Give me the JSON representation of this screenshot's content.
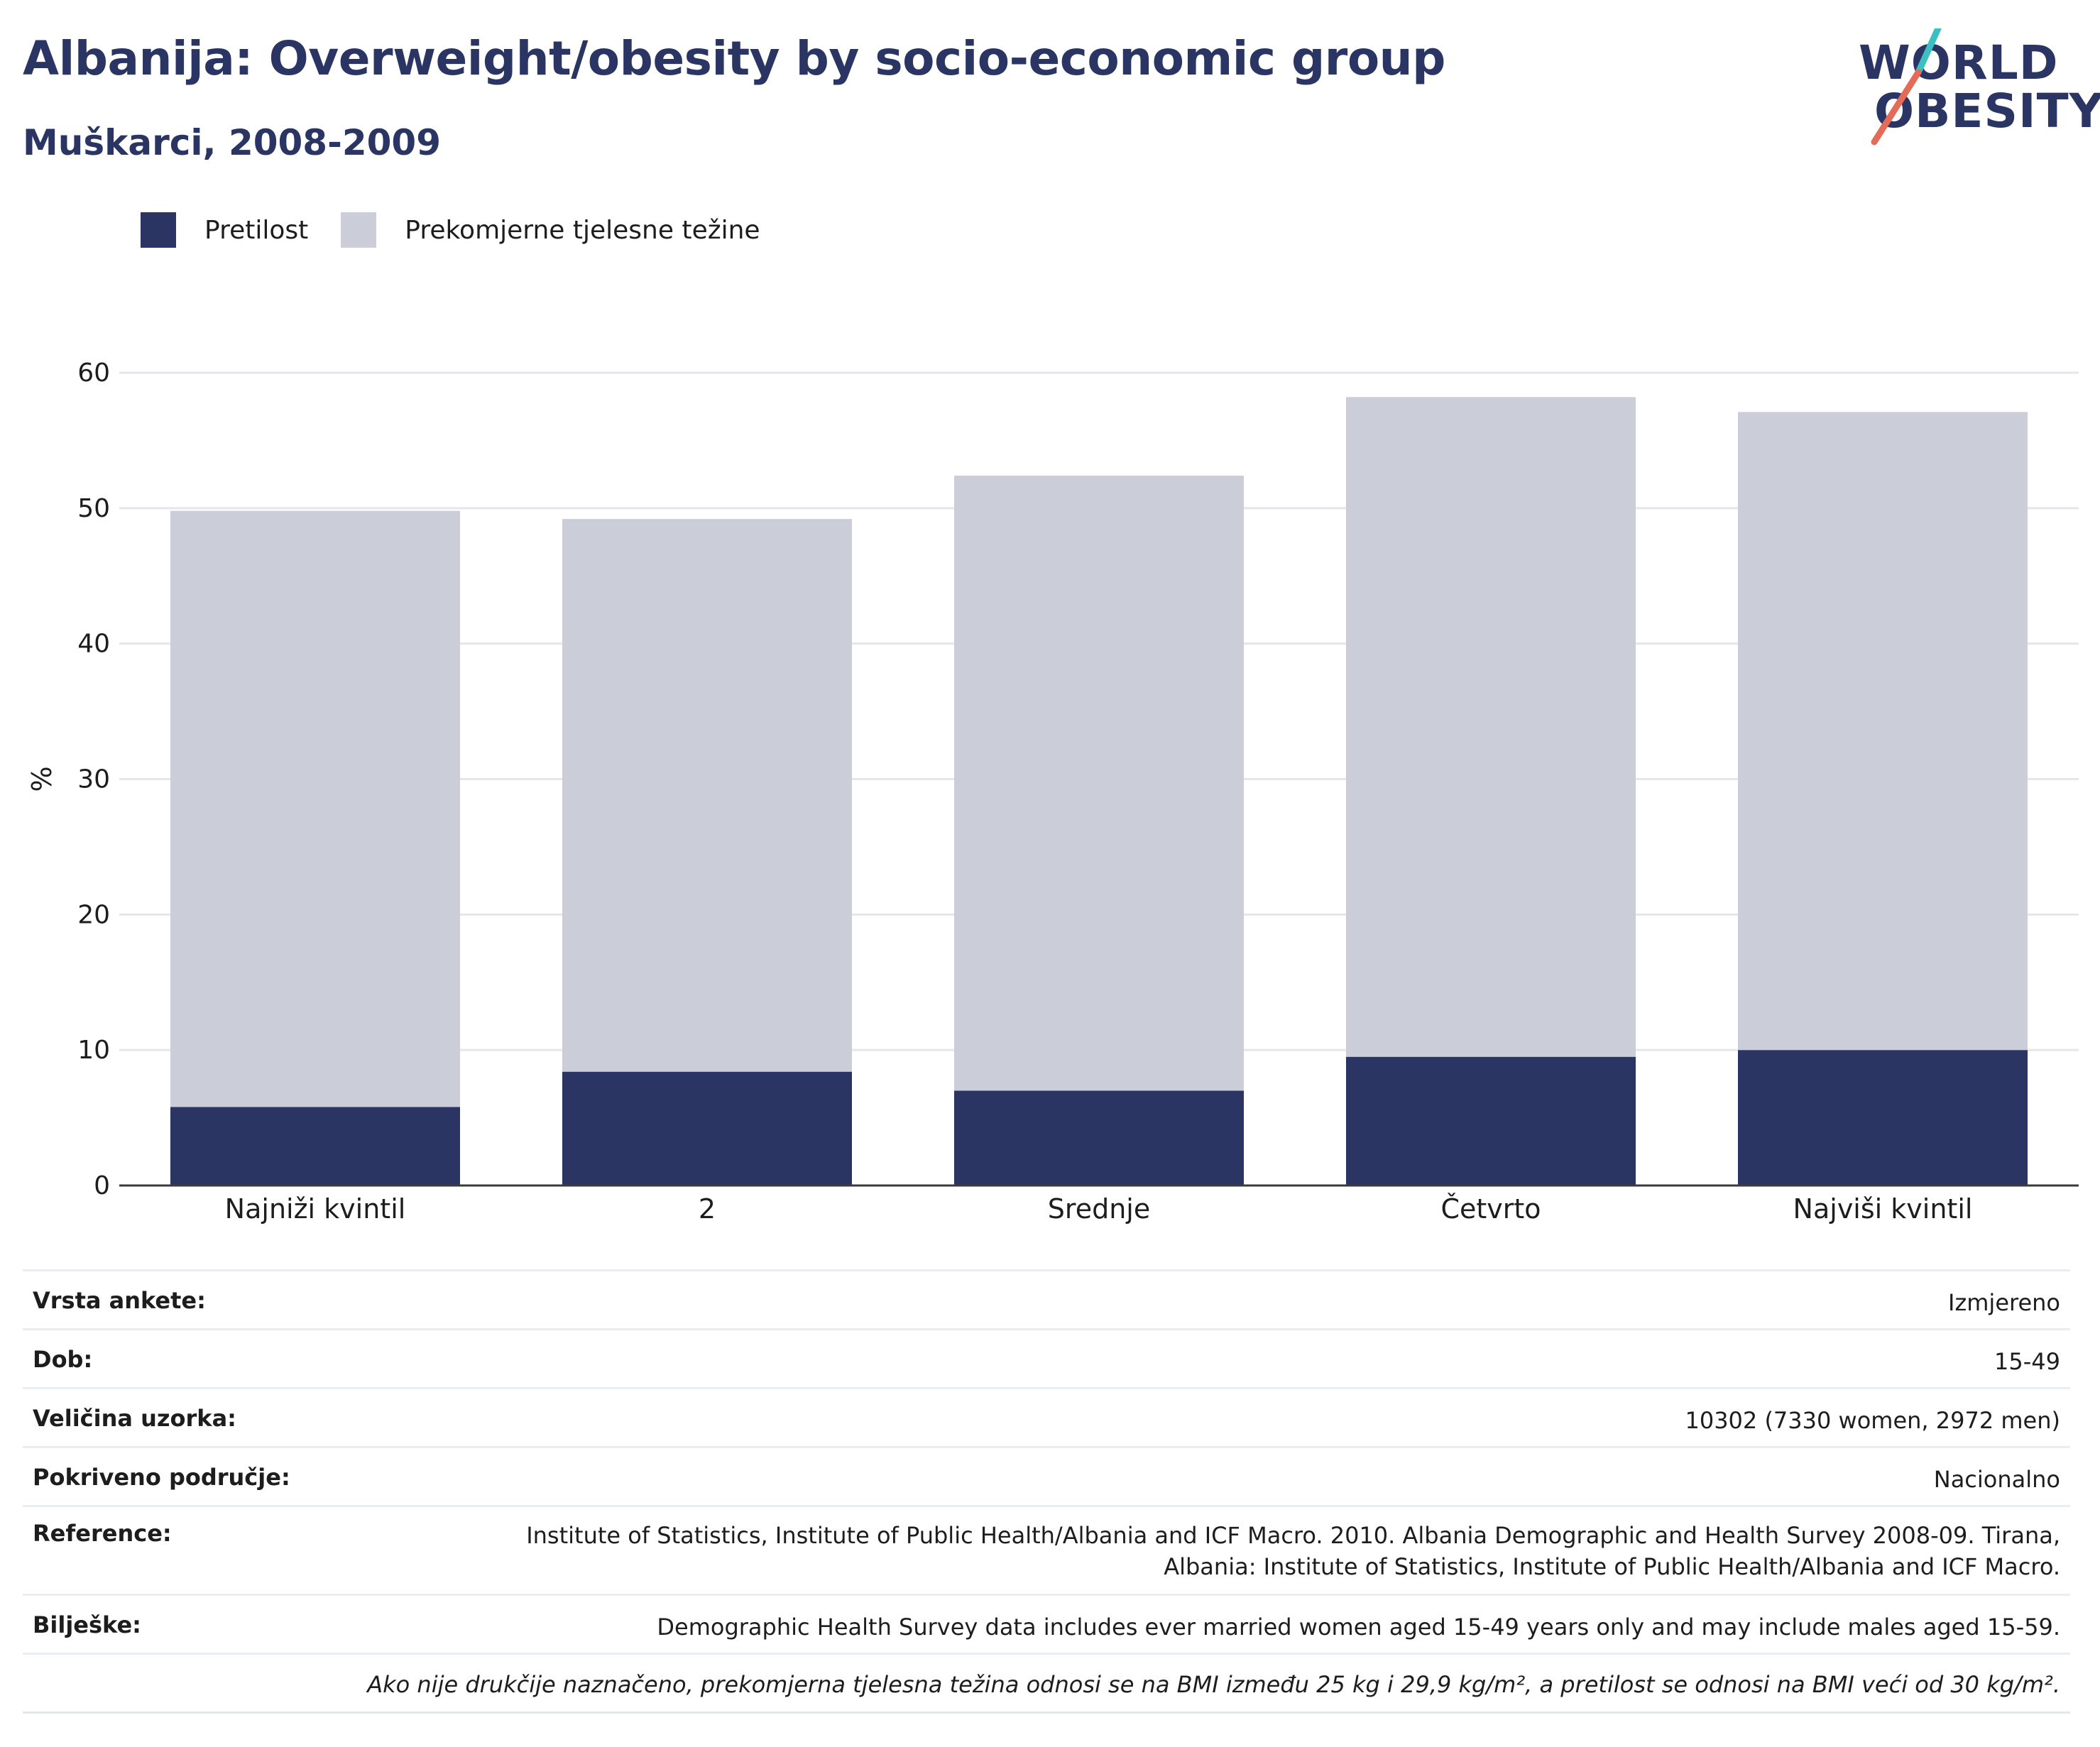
{
  "header": {
    "title": "Albanija: Overweight/obesity by socio-economic group",
    "subtitle": "Muškarci, 2008-2009"
  },
  "logo": {
    "line1": "WORLD",
    "line2": "OBESITY"
  },
  "colors": {
    "title": "#2a3563",
    "obesity": "#2a3563",
    "overweight": "#cbcdd8",
    "logo_teal": "#3bbfc2",
    "logo_coral": "#e36b58"
  },
  "chart_data": {
    "type": "bar",
    "stacked": true,
    "categories": [
      "Najniži kvintil",
      "2",
      "Srednje",
      "Četvrto",
      "Najviši kvintil"
    ],
    "series": [
      {
        "name": "Pretilost",
        "values": [
          5.8,
          8.4,
          7.0,
          9.5,
          10.0
        ]
      },
      {
        "name": "Prekomjerne tjelesne težine",
        "values": [
          44.0,
          40.8,
          45.4,
          48.7,
          47.1
        ]
      }
    ],
    "ylabel": "%",
    "ylim": [
      0,
      60
    ],
    "yticks": [
      0,
      10,
      20,
      30,
      40,
      50,
      60
    ],
    "grid": true,
    "legend_position": "top-left"
  },
  "details": [
    {
      "key": "Vrsta ankete:",
      "value": "Izmjereno"
    },
    {
      "key": "Dob:",
      "value": "15-49"
    },
    {
      "key": "Veličina uzorka:",
      "value": "10302 (7330 women, 2972 men)"
    },
    {
      "key": "Pokriveno područje:",
      "value": "Nacionalno"
    },
    {
      "key": "Reference:",
      "value": "Institute of Statistics, Institute of Public Health/Albania and ICF Macro. 2010. Albania Demographic and Health Survey 2008-09. Tirana,",
      "value2": "Albania: Institute of Statistics, Institute of Public Health/Albania and ICF Macro."
    },
    {
      "key": "Bilješke:",
      "value": "Demographic Health Survey data includes ever married women aged 15-49 years only and may include males aged 15-59."
    }
  ],
  "footnote": "Ako nije drukčije naznačeno, prekomjerna tjelesna težina odnosi se na BMI između 25 kg i 29,9 kg/m², a pretilost se odnosi na BMI veći od 30 kg/m²."
}
